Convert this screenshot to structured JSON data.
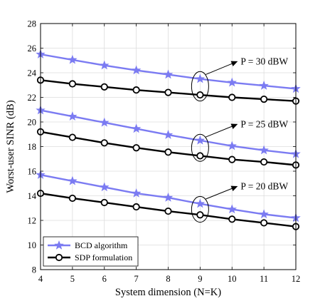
{
  "chart_data": {
    "type": "line",
    "xlabel": "System dimension (N=K)",
    "ylabel": "Worst-user SINR (dB)",
    "xlim": [
      4,
      12
    ],
    "ylim": [
      8,
      28
    ],
    "xticks": [
      4,
      5,
      6,
      7,
      8,
      9,
      10,
      11,
      12
    ],
    "yticks": [
      8,
      10,
      12,
      14,
      16,
      18,
      20,
      22,
      24,
      26,
      28
    ],
    "grid": true,
    "legend": {
      "position": "bottom-left",
      "entries": [
        {
          "label": "BCD algorithm",
          "color": "#7b7bf2",
          "marker": "star"
        },
        {
          "label": "SDP formulation",
          "color": "#000000",
          "marker": "circle"
        }
      ]
    },
    "x": [
      4,
      5,
      6,
      7,
      8,
      9,
      10,
      11,
      12
    ],
    "series": [
      {
        "group": "BCD algorithm",
        "power": "P = 30 dBW",
        "color": "#7b7bf2",
        "marker": "star",
        "values": [
          25.5,
          25.05,
          24.6,
          24.2,
          23.85,
          23.5,
          23.2,
          22.95,
          22.7
        ]
      },
      {
        "group": "SDP formulation",
        "power": "P = 30 dBW",
        "color": "#000000",
        "marker": "circle",
        "values": [
          23.4,
          23.1,
          22.85,
          22.6,
          22.4,
          22.2,
          22.0,
          21.85,
          21.7
        ]
      },
      {
        "group": "BCD algorithm",
        "power": "P = 25 dBW",
        "color": "#7b7bf2",
        "marker": "star",
        "values": [
          20.95,
          20.45,
          19.95,
          19.45,
          18.95,
          18.5,
          18.05,
          17.7,
          17.4
        ]
      },
      {
        "group": "SDP formulation",
        "power": "P = 25 dBW",
        "color": "#000000",
        "marker": "circle",
        "values": [
          19.2,
          18.75,
          18.3,
          17.9,
          17.55,
          17.25,
          16.95,
          16.75,
          16.5
        ]
      },
      {
        "group": "BCD algorithm",
        "power": "P = 20 dBW",
        "color": "#7b7bf2",
        "marker": "star",
        "values": [
          15.7,
          15.2,
          14.7,
          14.2,
          13.85,
          13.35,
          12.9,
          12.5,
          12.2
        ]
      },
      {
        "group": "SDP formulation",
        "power": "P = 20 dBW",
        "color": "#000000",
        "marker": "circle",
        "values": [
          14.2,
          13.8,
          13.45,
          13.1,
          12.75,
          12.45,
          12.1,
          11.8,
          11.5
        ]
      }
    ],
    "annotations": [
      {
        "text": "P = 30 dBW",
        "x": 9,
        "y": 22.9,
        "ellipse_ry": 1.2
      },
      {
        "text": "P = 25 dBW",
        "x": 9,
        "y": 17.9,
        "ellipse_ry": 1.1
      },
      {
        "text": "P = 20 dBW",
        "x": 9,
        "y": 12.9,
        "ellipse_ry": 1.05
      }
    ]
  }
}
